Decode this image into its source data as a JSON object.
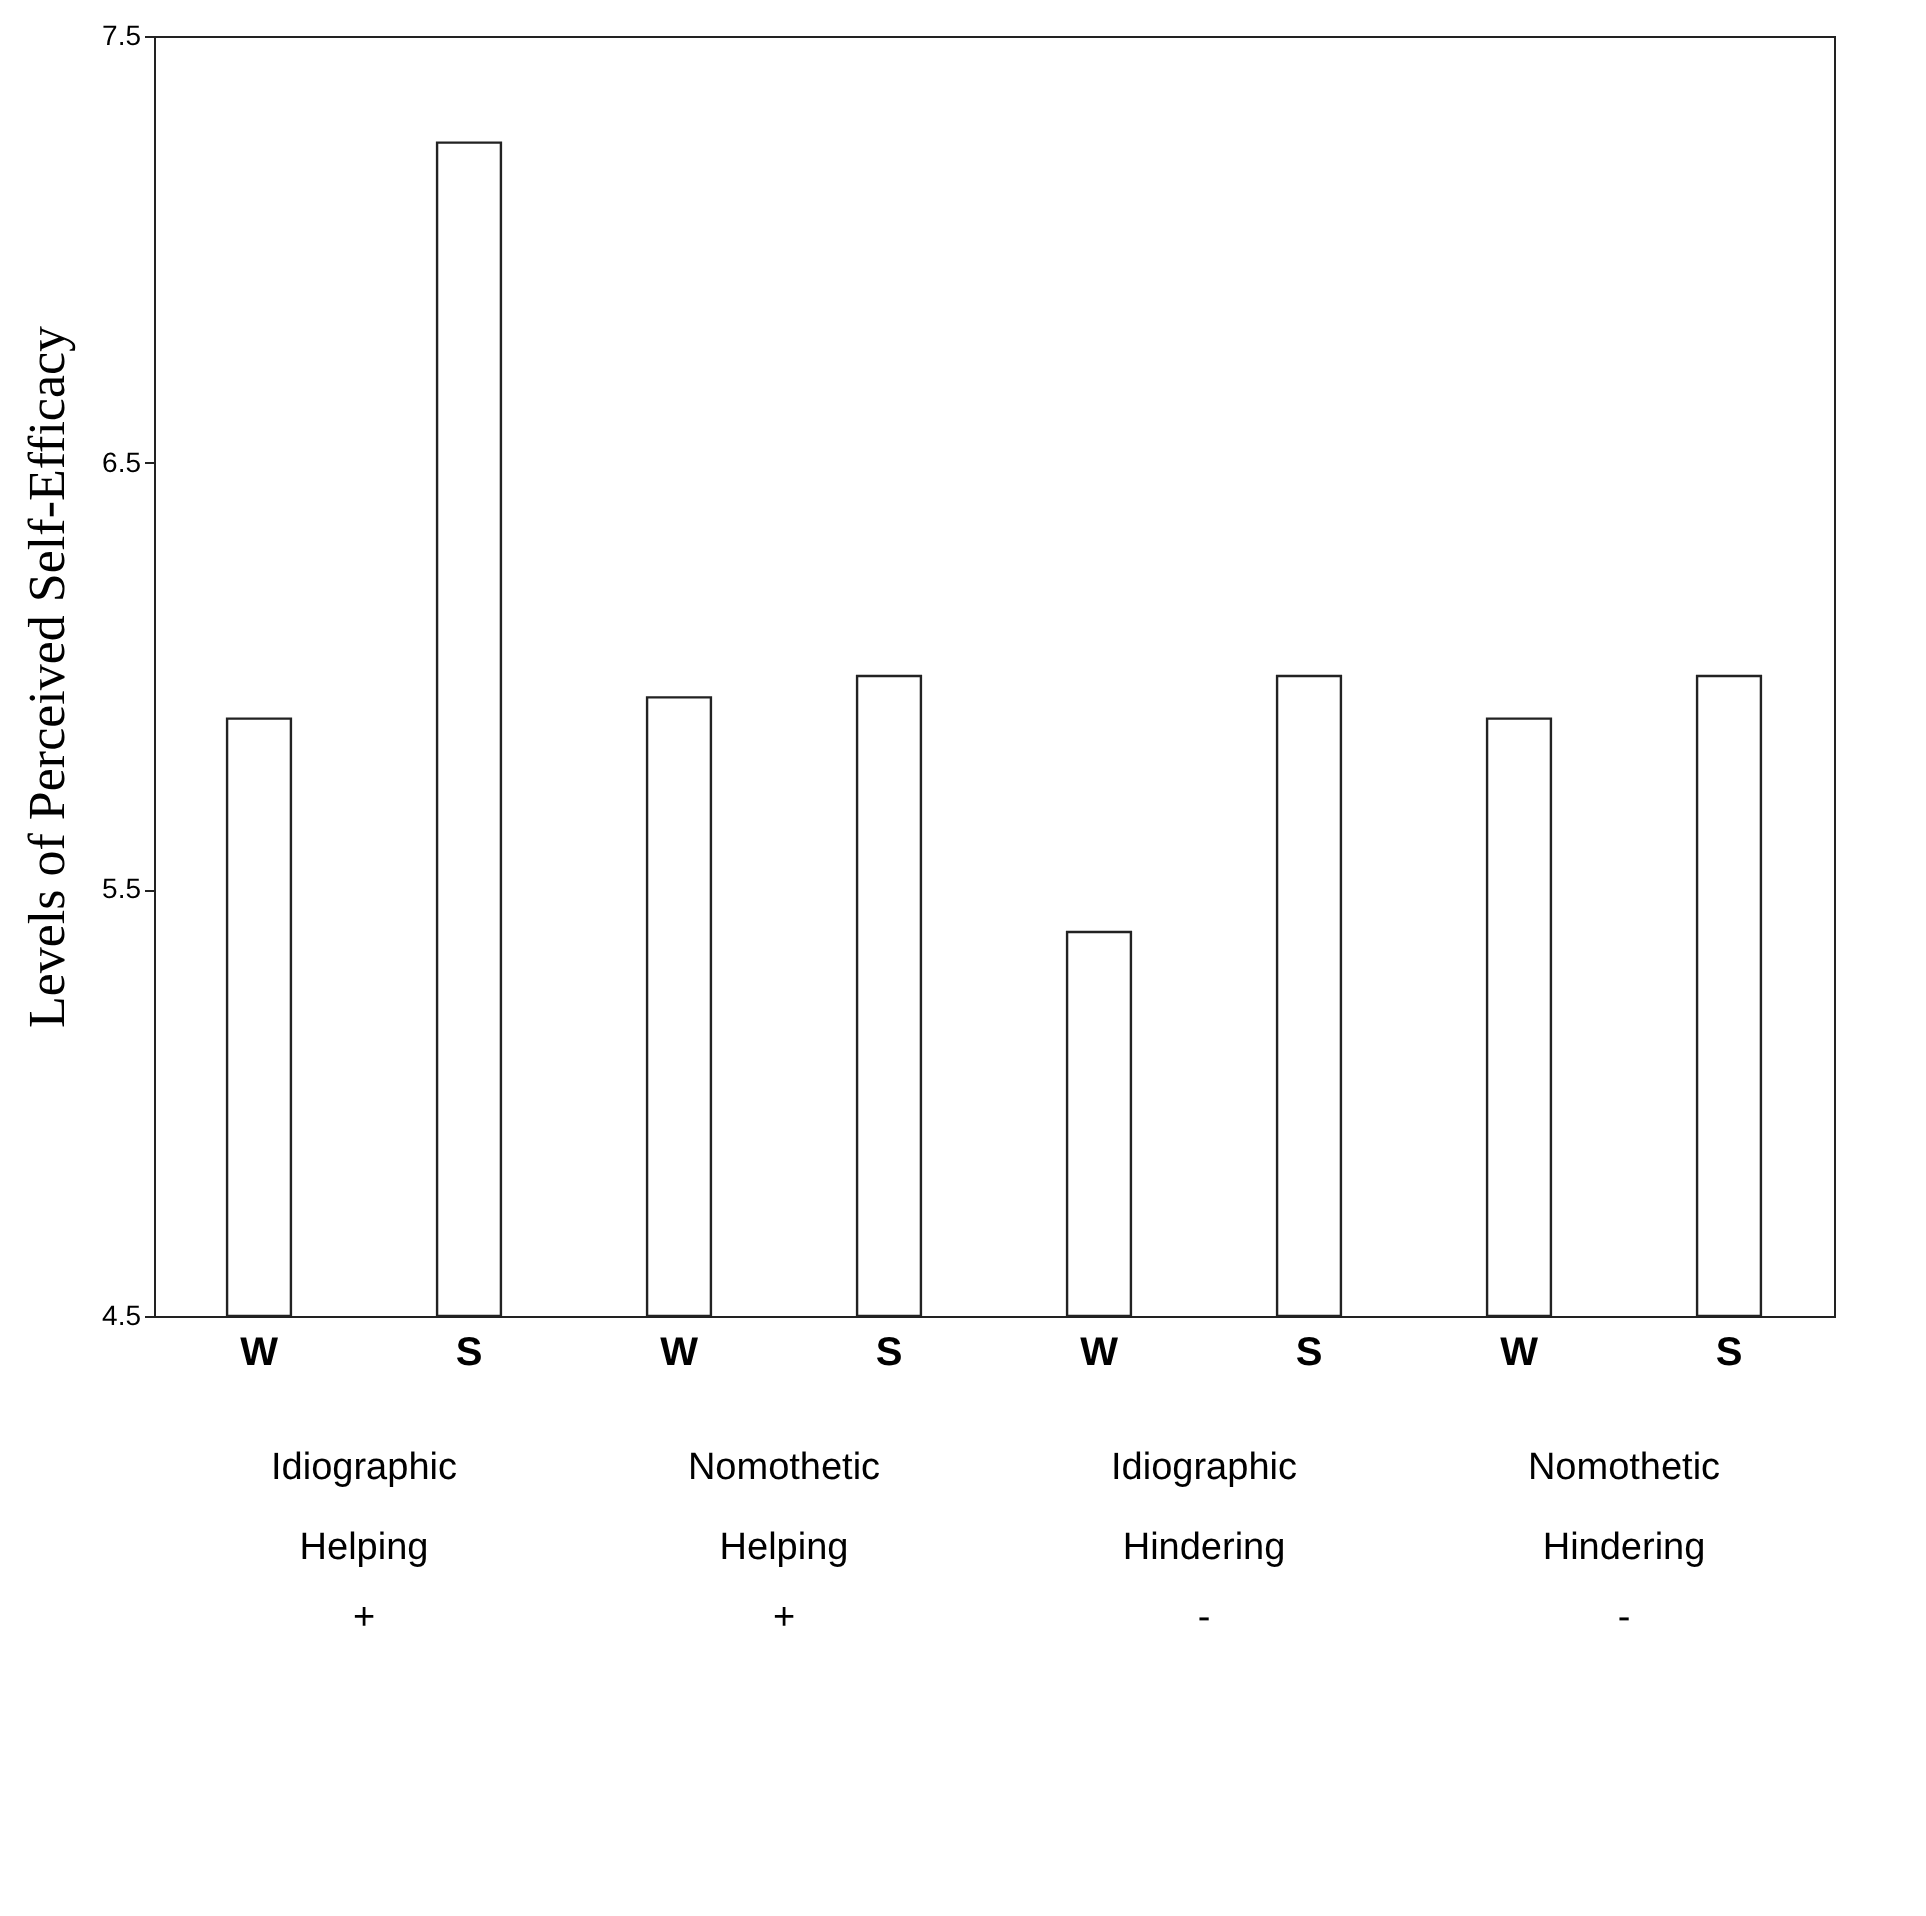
{
  "chart_data": {
    "type": "bar",
    "ylabel": "Levels of Perceived Self-Efficacy",
    "categories": [
      "W",
      "S",
      "W",
      "S",
      "W",
      "S",
      "W",
      "S"
    ],
    "values": [
      5.9,
      7.25,
      5.95,
      6.0,
      5.4,
      6.0,
      5.9,
      6.0
    ],
    "color": "#ffffff",
    "ylim": [
      4.5,
      7.5
    ],
    "yticks": [
      4.5,
      5.5,
      6.5,
      7.5
    ],
    "grid": false,
    "annotations": [
      "Idiographic Helping",
      "Nomothetic Helping",
      "Idiographic Hindering",
      "Nomothetic Hindering",
      "+",
      "+",
      "-",
      "-"
    ]
  }
}
